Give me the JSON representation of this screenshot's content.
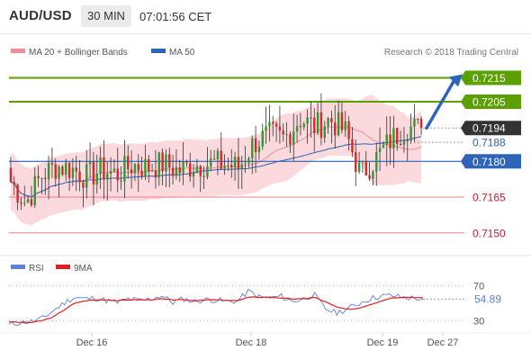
{
  "header": {
    "symbol": "AUD/USD",
    "timeframe": "30 MIN",
    "time": "07:01:56 CET"
  },
  "legend": {
    "ma20_bb": "MA 20 + Bollinger Bands",
    "ma50": "MA 50",
    "credit": "Research © 2018 Trading Central"
  },
  "colors": {
    "resistance": "#5aa100",
    "support": "#2d63b8",
    "current": "#333333",
    "weak": "#e8808a",
    "bollinger_fill": "#fbd9dc",
    "ma20": "#f08d95",
    "ma50": "#2d63b8",
    "candle_up": "#2e9a2e",
    "candle_down": "#d22a2a",
    "rsi": "#5f7fd8",
    "rsi_ma": "#e02020"
  },
  "chart_data": [
    {
      "type": "candlestick",
      "y_range": [
        0.7142,
        0.7222
      ],
      "x_labels": [
        "Dec 16",
        "Dec 18",
        "Dec 19",
        "Dec 27"
      ],
      "levels": [
        {
          "value": 0.7215,
          "label": "0.7215",
          "kind": "resistance"
        },
        {
          "value": 0.7205,
          "label": "0.7205",
          "kind": "resistance"
        },
        {
          "value": 0.7194,
          "label": "0.7194",
          "kind": "current"
        },
        {
          "value": 0.7188,
          "label": "0.7188",
          "kind": "reference"
        },
        {
          "value": 0.718,
          "label": "0.7180",
          "kind": "support"
        },
        {
          "value": 0.7165,
          "label": "0.7165",
          "kind": "weak"
        },
        {
          "value": 0.715,
          "label": "0.7150",
          "kind": "weak"
        }
      ],
      "arrow": {
        "from": 0.7194,
        "to": 0.7215
      },
      "path_points": [
        [
          0.7176,
          0.7167
        ],
        [
          0.7168,
          0.7157
        ],
        [
          0.7172,
          0.7176
        ],
        [
          0.7177,
          0.7179
        ],
        [
          0.7178,
          0.7176
        ],
        [
          0.7172,
          0.7175
        ],
        [
          0.7176,
          0.7177
        ],
        [
          0.7172,
          0.7177
        ],
        [
          0.7176,
          0.7181
        ],
        [
          0.7178,
          0.7177
        ],
        [
          0.7178,
          0.718
        ],
        [
          0.7175,
          0.7177
        ],
        [
          0.7179,
          0.7178
        ],
        [
          0.7182,
          0.7176
        ],
        [
          0.7181,
          0.7177
        ],
        [
          0.7179,
          0.7176
        ],
        [
          0.718,
          0.7196
        ],
        [
          0.7194,
          0.7188
        ],
        [
          0.7188,
          0.7191
        ],
        [
          0.72,
          0.7196
        ],
        [
          0.7193,
          0.7196
        ],
        [
          0.7197,
          0.7198
        ],
        [
          0.7197,
          0.7188
        ],
        [
          0.7173,
          0.7176
        ],
        [
          0.7178,
          0.7184
        ],
        [
          0.7187,
          0.7191
        ],
        [
          0.7196,
          0.7193
        ],
        [
          0.7193,
          0.7194
        ]
      ]
    },
    {
      "type": "line",
      "series": [
        {
          "name": "RSI",
          "values": [
            25,
            28,
            29,
            32,
            41,
            50,
            57,
            55,
            56,
            53,
            51,
            55,
            53,
            55,
            59,
            51,
            55,
            52,
            54,
            54,
            52,
            53,
            64,
            57,
            56,
            58,
            52,
            55,
            60,
            44,
            39,
            43,
            49,
            55,
            58,
            59,
            57,
            56,
            54.89
          ]
        },
        {
          "name": "9MA",
          "values": [
            29,
            28,
            28,
            30,
            34,
            42,
            50,
            53,
            54,
            54,
            53,
            54,
            54,
            54,
            55,
            54,
            54,
            53,
            54,
            54,
            53,
            53,
            57,
            57,
            57,
            56,
            55,
            55,
            57,
            52,
            46,
            43,
            44,
            48,
            52,
            56,
            57,
            57,
            56
          ]
        }
      ],
      "levels": [
        70,
        30
      ],
      "last_value_label": "54.89",
      "y_range": [
        18,
        82
      ]
    }
  ]
}
